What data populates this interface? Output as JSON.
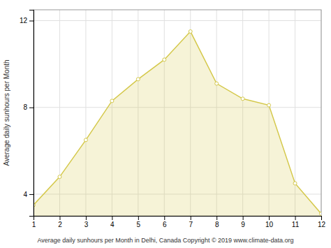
{
  "chart_data": {
    "type": "area",
    "xlabel": "Average daily sunhours per Month in Delhi, Canada Copyright © 2019 www.climate-data.org",
    "ylabel": "Average daily sunhours per Month",
    "x": [
      1,
      2,
      3,
      4,
      5,
      6,
      7,
      8,
      9,
      10,
      11,
      12
    ],
    "values": [
      3.5,
      4.8,
      6.5,
      8.3,
      9.3,
      10.2,
      11.5,
      9.1,
      8.4,
      8.1,
      4.5,
      3.1
    ],
    "color": "#D4C84A",
    "marker": "circle",
    "xlim": [
      1,
      12
    ],
    "ylim": [
      3.0,
      12.5
    ],
    "xticks": [
      1,
      2,
      3,
      4,
      5,
      6,
      7,
      8,
      9,
      10,
      11,
      12
    ],
    "yticks": [
      4,
      8,
      12
    ],
    "grid": true
  }
}
